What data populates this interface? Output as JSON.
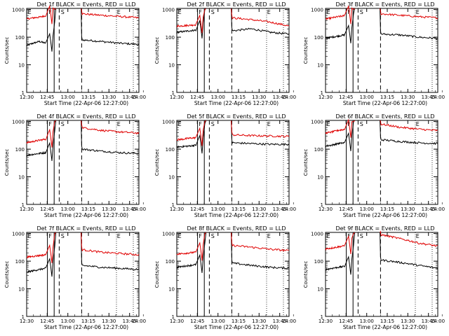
{
  "colors": {
    "events": "#000000",
    "lld": "#e00000",
    "axis": "#000000",
    "background": "#ffffff"
  },
  "common": {
    "xlabel": "Start Time (22-Apr-06 12:27:00)",
    "ylabel": "Counts/sec",
    "xticks": [
      "12:30",
      "12:45",
      "13:00",
      "13:15",
      "13:30",
      "13:45",
      "14:00"
    ],
    "yticks": [
      "1",
      "10",
      "100",
      "1000"
    ],
    "markers": [
      "E",
      "F",
      "S",
      "E"
    ]
  },
  "chart_data": [
    {
      "type": "line",
      "title": "Det 1f BLACK = Events, RED = LLD",
      "detector": 1,
      "xlabel": "Start Time (22-Apr-06 12:27:00)",
      "ylabel": "Counts/sec",
      "xlim_minutes": [
        0,
        100
      ],
      "ylim": [
        1,
        1100
      ],
      "yscale": "log",
      "series": [
        {
          "name": "Events",
          "color": "#000000",
          "pre": [
            50,
            60,
            70,
            60
          ],
          "post": [
            80,
            70,
            60,
            55
          ]
        },
        {
          "name": "LLD",
          "color": "#e00000",
          "pre": [
            450,
            500,
            530,
            600
          ],
          "post": [
            700,
            620,
            560,
            500
          ]
        }
      ]
    },
    {
      "type": "line",
      "title": "Det 2f BLACK = Events, RED = LLD",
      "detector": 2,
      "xlabel": "Start Time (22-Apr-06 12:27:00)",
      "ylabel": "Counts/sec",
      "xlim_minutes": [
        0,
        100
      ],
      "ylim": [
        1,
        1100
      ],
      "yscale": "log",
      "series": [
        {
          "name": "Events",
          "color": "#000000",
          "pre": [
            150,
            160,
            170,
            180
          ],
          "post": [
            170,
            200,
            150,
            130
          ]
        },
        {
          "name": "LLD",
          "color": "#e00000",
          "pre": [
            250,
            260,
            270,
            280
          ],
          "post": [
            500,
            430,
            350,
            250
          ]
        }
      ]
    },
    {
      "type": "line",
      "title": "Det 3f BLACK = Events, RED = LLD",
      "detector": 3,
      "xlabel": "Start Time (22-Apr-06 12:27:00)",
      "ylabel": "Counts/sec",
      "xlim_minutes": [
        0,
        100
      ],
      "ylim": [
        1,
        1100
      ],
      "yscale": "log",
      "series": [
        {
          "name": "Events",
          "color": "#000000",
          "pre": [
            90,
            100,
            110,
            120
          ],
          "post": [
            130,
            120,
            100,
            90
          ]
        },
        {
          "name": "LLD",
          "color": "#e00000",
          "pre": [
            450,
            500,
            550,
            600
          ],
          "post": [
            700,
            620,
            550,
            500
          ]
        }
      ]
    },
    {
      "type": "line",
      "title": "Det 4f BLACK = Events, RED = LLD",
      "detector": 4,
      "xlabel": "Start Time (22-Apr-06 12:27:00)",
      "ylabel": "Counts/sec",
      "xlim_minutes": [
        0,
        100
      ],
      "ylim": [
        1,
        1100
      ],
      "yscale": "log",
      "series": [
        {
          "name": "Events",
          "color": "#000000",
          "pre": [
            60,
            65,
            70,
            75
          ],
          "post": [
            100,
            85,
            75,
            70
          ]
        },
        {
          "name": "LLD",
          "color": "#e00000",
          "pre": [
            170,
            190,
            210,
            230
          ],
          "post": [
            600,
            480,
            420,
            380
          ]
        }
      ]
    },
    {
      "type": "line",
      "title": "Det 5f BLACK = Events, RED = LLD",
      "detector": 5,
      "xlabel": "Start Time (22-Apr-06 12:27:00)",
      "ylabel": "Counts/sec",
      "xlim_minutes": [
        0,
        100
      ],
      "ylim": [
        1,
        1100
      ],
      "yscale": "log",
      "series": [
        {
          "name": "Events",
          "color": "#000000",
          "pre": [
            120,
            125,
            130,
            140
          ],
          "post": [
            170,
            160,
            150,
            150
          ]
        },
        {
          "name": "LLD",
          "color": "#e00000",
          "pre": [
            220,
            230,
            250,
            260
          ],
          "post": [
            330,
            310,
            300,
            290
          ]
        }
      ]
    },
    {
      "type": "line",
      "title": "Det 6f BLACK = Events, RED = LLD",
      "detector": 6,
      "xlabel": "Start Time (22-Apr-06 12:27:00)",
      "ylabel": "Counts/sec",
      "xlim_minutes": [
        0,
        100
      ],
      "ylim": [
        1,
        1100
      ],
      "yscale": "log",
      "series": [
        {
          "name": "Events",
          "color": "#000000",
          "pre": [
            130,
            140,
            160,
            170
          ],
          "post": [
            220,
            190,
            170,
            160
          ]
        },
        {
          "name": "LLD",
          "color": "#e00000",
          "pre": [
            380,
            420,
            480,
            520
          ],
          "post": [
            800,
            620,
            530,
            470
          ]
        }
      ]
    },
    {
      "type": "line",
      "title": "Det 7f BLACK = Events, RED = LLD",
      "detector": 7,
      "xlabel": "Start Time (22-Apr-06 12:27:00)",
      "ylabel": "Counts/sec",
      "xlim_minutes": [
        0,
        100
      ],
      "ylim": [
        1,
        1100
      ],
      "yscale": "log",
      "series": [
        {
          "name": "Events",
          "color": "#000000",
          "pre": [
            40,
            45,
            50,
            55
          ],
          "post": [
            70,
            60,
            55,
            50
          ]
        },
        {
          "name": "LLD",
          "color": "#e00000",
          "pre": [
            140,
            150,
            160,
            170
          ],
          "post": [
            260,
            210,
            190,
            170
          ]
        }
      ]
    },
    {
      "type": "line",
      "title": "Det 8f BLACK = Events, RED = LLD",
      "detector": 8,
      "xlabel": "Start Time (22-Apr-06 12:27:00)",
      "ylabel": "Counts/sec",
      "xlim_minutes": [
        0,
        100
      ],
      "ylim": [
        1,
        1100
      ],
      "yscale": "log",
      "series": [
        {
          "name": "Events",
          "color": "#000000",
          "pre": [
            60,
            65,
            70,
            75
          ],
          "post": [
            85,
            70,
            60,
            55
          ]
        },
        {
          "name": "LLD",
          "color": "#e00000",
          "pre": [
            180,
            190,
            200,
            210
          ],
          "post": [
            370,
            320,
            270,
            240
          ]
        }
      ]
    },
    {
      "type": "line",
      "title": "Det 9f BLACK = Events, RED = LLD",
      "detector": 9,
      "xlabel": "Start Time (22-Apr-06 12:27:00)",
      "ylabel": "Counts/sec",
      "xlim_minutes": [
        0,
        100
      ],
      "ylim": [
        1,
        1100
      ],
      "yscale": "log",
      "series": [
        {
          "name": "Events",
          "color": "#000000",
          "pre": [
            50,
            55,
            60,
            65
          ],
          "post": [
            110,
            90,
            70,
            55
          ]
        },
        {
          "name": "LLD",
          "color": "#e00000",
          "pre": [
            280,
            300,
            330,
            360
          ],
          "post": [
            900,
            650,
            450,
            350
          ]
        }
      ]
    }
  ]
}
